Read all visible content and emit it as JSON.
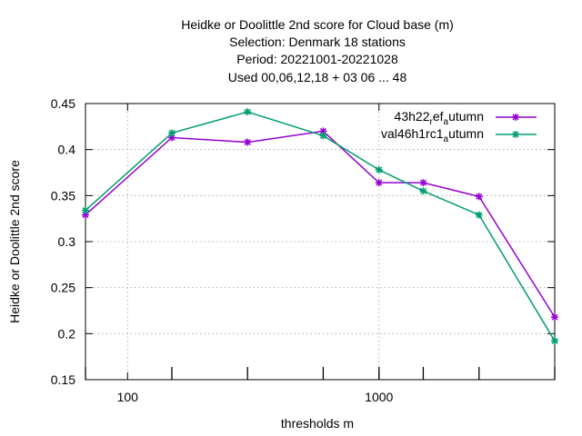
{
  "chart_data": {
    "type": "line",
    "title_lines": [
      "Heidke or Doolittle 2nd score  for Cloud base (m)",
      "Selection: Denmark     18 stations",
      "Period: 20221001-20221028",
      "Used  00,06,12,18  + 03 06 ... 48"
    ],
    "xlabel": "thresholds m",
    "ylabel": "Heidke or Doolittle 2nd score",
    "x_scale": "log",
    "xlim": [
      68,
      5000
    ],
    "ylim": [
      0.15,
      0.45
    ],
    "x_ticks": [
      {
        "value": 100,
        "label": "100"
      },
      {
        "value": 1000,
        "label": "1000"
      }
    ],
    "y_ticks": [
      {
        "value": 0.15,
        "label": "0.15"
      },
      {
        "value": 0.2,
        "label": "0.2"
      },
      {
        "value": 0.25,
        "label": "0.25"
      },
      {
        "value": 0.3,
        "label": "0.3"
      },
      {
        "value": 0.35,
        "label": "0.35"
      },
      {
        "value": 0.4,
        "label": "0.4"
      },
      {
        "value": 0.45,
        "label": "0.45"
      }
    ],
    "grid": true,
    "legend_position": "top-right",
    "x": [
      68,
      150,
      300,
      600,
      1000,
      1500,
      2500,
      5000
    ],
    "series": [
      {
        "name_main": "43h22",
        "name_sub1": "r",
        "name_mid": "ef",
        "name_sub2": "a",
        "name_end": "utumn",
        "color": "#9400d3",
        "values": [
          0.329,
          0.413,
          0.408,
          0.42,
          0.364,
          0.364,
          0.349,
          0.218
        ]
      },
      {
        "name_main": "val46h1rc1",
        "name_sub1": "",
        "name_mid": "",
        "name_sub2": "a",
        "name_end": "utumn",
        "color": "#009e73",
        "values": [
          0.334,
          0.418,
          0.441,
          0.415,
          0.378,
          0.355,
          0.329,
          0.192
        ]
      }
    ]
  }
}
